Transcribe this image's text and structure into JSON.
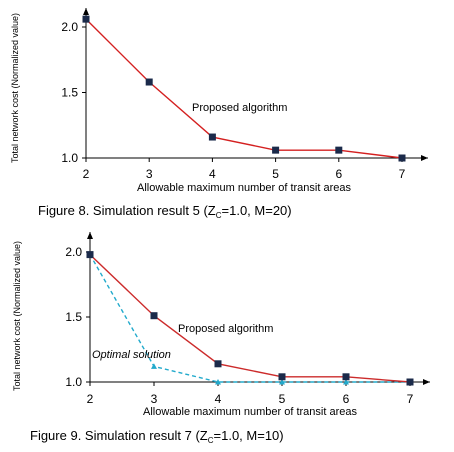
{
  "chart_data": [
    {
      "type": "line",
      "caption": "Figure 8. Simulation result 5 (Z",
      "caption_sub": "C",
      "caption_tail": "=1.0, M=20)",
      "xlabel": "Allowable maximum number of transit areas",
      "ylabel": "Total network cost (Normalized value)",
      "x": [
        2,
        3,
        4,
        5,
        6,
        7
      ],
      "x_ticks": [
        "2",
        "3",
        "4",
        "5",
        "6",
        "7"
      ],
      "y_ticks": [
        "1.0",
        "1.5",
        "2.0"
      ],
      "xlim": [
        2,
        7.5
      ],
      "ylim": [
        1.0,
        2.1
      ],
      "grid": false,
      "series": [
        {
          "name": "Proposed algorithm",
          "color": "#d42020",
          "marker": "square",
          "values": [
            2.06,
            1.58,
            1.16,
            1.06,
            1.06,
            1.0
          ]
        }
      ],
      "annotations": [
        "Proposed algorithm"
      ]
    },
    {
      "type": "line",
      "caption": "Figure 9. Simulation result 7 (Z",
      "caption_sub": "C",
      "caption_tail": "=1.0, M=10)",
      "xlabel": "Allowable maximum number of transit areas",
      "ylabel": "Total network cost (Normalized value)",
      "x": [
        2,
        3,
        4,
        5,
        6,
        7
      ],
      "x_ticks": [
        "2",
        "3",
        "4",
        "5",
        "6",
        "7"
      ],
      "y_ticks": [
        "1.0",
        "1.5",
        "2.0"
      ],
      "xlim": [
        2,
        7.5
      ],
      "ylim": [
        1.0,
        2.1
      ],
      "grid": false,
      "series": [
        {
          "name": "Proposed algorithm",
          "color": "#cc2b2b",
          "marker": "square",
          "values": [
            1.98,
            1.51,
            1.14,
            1.04,
            1.04,
            1.0
          ]
        },
        {
          "name": "Optimal solution",
          "color": "#22aacc",
          "marker": "triangle",
          "dashed": true,
          "values": [
            1.98,
            1.12,
            1.0,
            1.0,
            1.0,
            1.0
          ]
        }
      ],
      "annotations": [
        "Proposed algorithm",
        "Optimal solution"
      ]
    }
  ]
}
